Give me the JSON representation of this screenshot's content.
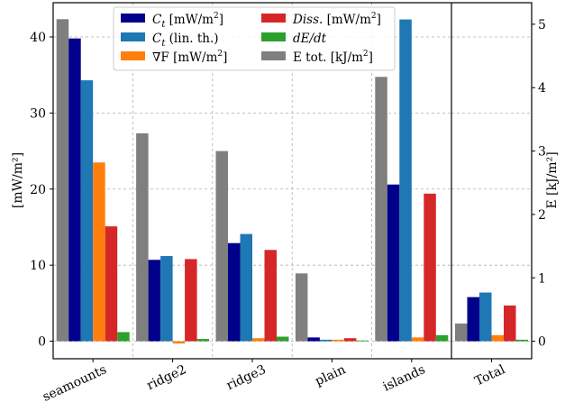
{
  "chart_data": {
    "type": "bar",
    "categories": [
      "seamounts",
      "ridge2",
      "ridge3",
      "plain",
      "islands"
    ],
    "total_category": "Total",
    "ylabel_left": "[mW/m²]",
    "ylabel_right": "E [kJ/m²]",
    "ylim_left": [
      -2.3,
      44.5
    ],
    "ylim_right": [
      -0.276,
      5.34
    ],
    "yticks_left": [
      0,
      10,
      20,
      30,
      40
    ],
    "yticks_right": [
      0,
      1,
      2,
      3,
      4,
      5
    ],
    "grid": true,
    "legend_position": "top-center",
    "series": [
      {
        "name": "C_t [mW/m²]",
        "name_parts": [
          "C",
          "t",
          " [mW/m",
          "2",
          "]"
        ],
        "axis": "left",
        "color": "#00008b",
        "values": [
          39.8,
          10.7,
          12.9,
          0.5,
          20.6
        ],
        "total": 5.8
      },
      {
        "name": "C_t (lin. th.)",
        "name_parts": [
          "C",
          "t",
          " (lin. th.)",
          "",
          ""
        ],
        "axis": "left",
        "color": "#1f77b4",
        "values": [
          34.3,
          11.2,
          14.1,
          0.2,
          42.3
        ],
        "total": 6.4
      },
      {
        "name": "∇F [mW/m²]",
        "name_parts": [
          "∇F",
          "",
          " [mW/m",
          "2",
          "]"
        ],
        "axis": "left",
        "color": "#ff7f0e",
        "values": [
          23.5,
          -0.3,
          0.4,
          0.2,
          0.5
        ],
        "total": 0.8
      },
      {
        "name": "Diss. [mW/m²]",
        "name_parts": [
          "Diss.",
          "",
          " [mW/m",
          "2",
          "]"
        ],
        "axis": "left",
        "color": "#d62728",
        "values": [
          15.1,
          10.8,
          12.0,
          0.4,
          19.4
        ],
        "total": 4.7
      },
      {
        "name": "dE/dt",
        "name_parts": [
          "dE/dt",
          "",
          "",
          "",
          ""
        ],
        "axis": "left",
        "color": "#2ca02c",
        "values": [
          1.2,
          0.3,
          0.6,
          0.1,
          0.8
        ],
        "total": 0.2
      },
      {
        "name": "E tot. [kJ/m²]",
        "name_parts": [
          "E tot. [kJ/m",
          "",
          "",
          "2",
          "]"
        ],
        "axis": "right",
        "color": "#7f7f7f",
        "values": [
          5.08,
          3.28,
          3.0,
          1.07,
          4.17
        ],
        "total": 0.28
      }
    ]
  }
}
